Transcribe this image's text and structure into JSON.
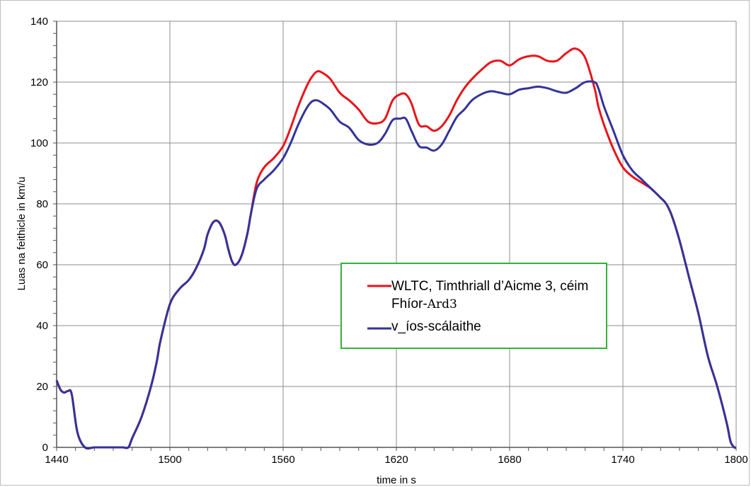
{
  "chart_data": {
    "type": "line",
    "xlabel": "time in s",
    "ylabel": "Luas na feithicle in km/u",
    "xlim": [
      1440,
      1800
    ],
    "ylim": [
      0,
      140
    ],
    "x_ticks": [
      1440,
      1500,
      1560,
      1620,
      1680,
      1740,
      1800
    ],
    "y_ticks": [
      0,
      20,
      40,
      60,
      80,
      100,
      120,
      140
    ],
    "grid": true,
    "legend_position": "center-right",
    "series": [
      {
        "name": "WLTC, Timthriall d’Aicme 3, céim Fhíor-Ard3",
        "legend_line1": "WLTC, Timthriall d’Aicme 3, céim",
        "legend_line2_a": "Fhíor-",
        "legend_line2_b": "Ard3",
        "color": "#e8141b",
        "x": [
          1440,
          1442,
          1444,
          1446,
          1448,
          1451,
          1455,
          1460,
          1465,
          1470,
          1475,
          1478,
          1480,
          1485,
          1490,
          1493,
          1495,
          1500,
          1505,
          1510,
          1514,
          1518,
          1520,
          1523,
          1526,
          1529,
          1531,
          1533,
          1535,
          1538,
          1541,
          1543,
          1546,
          1550,
          1555,
          1560,
          1564,
          1568,
          1572,
          1575,
          1578,
          1581,
          1585,
          1590,
          1595,
          1600,
          1605,
          1610,
          1614,
          1618,
          1622,
          1625,
          1628,
          1632,
          1636,
          1640,
          1644,
          1648,
          1652,
          1656,
          1660,
          1665,
          1670,
          1675,
          1680,
          1685,
          1690,
          1695,
          1700,
          1705,
          1710,
          1715,
          1720,
          1725,
          1727,
          1730,
          1735,
          1740,
          1745,
          1750,
          1755,
          1760,
          1763,
          1766,
          1770,
          1775,
          1780,
          1785,
          1790,
          1795,
          1797,
          1799,
          1800
        ],
        "values": [
          22,
          19,
          18,
          18.5,
          17.5,
          5,
          0,
          0,
          0,
          0,
          0,
          0,
          3,
          10,
          20,
          28,
          35,
          47,
          52,
          55,
          59,
          65,
          70,
          74,
          74,
          70,
          65,
          61,
          60,
          63,
          70,
          77,
          87,
          92,
          95,
          99,
          105,
          112,
          118,
          121.5,
          123.5,
          123,
          121,
          116.5,
          114,
          111,
          107,
          106.5,
          108,
          114,
          116,
          116,
          113,
          106,
          105.5,
          104,
          105.5,
          109,
          114,
          118,
          121,
          124,
          126.5,
          127,
          125.5,
          127.5,
          128.5,
          128.5,
          127,
          127,
          129.5,
          131,
          128,
          118,
          112,
          106,
          98,
          92,
          89,
          87,
          85,
          82,
          80,
          76,
          68,
          56,
          44,
          30,
          20,
          8,
          2,
          0,
          0
        ]
      },
      {
        "name": "v_íos-scálaithe",
        "legend_line1": "v_íos-scálaithe",
        "color": "#33339a",
        "x": [
          1440,
          1442,
          1444,
          1446,
          1448,
          1451,
          1455,
          1460,
          1465,
          1470,
          1475,
          1478,
          1480,
          1485,
          1490,
          1493,
          1495,
          1500,
          1505,
          1510,
          1514,
          1518,
          1520,
          1523,
          1526,
          1529,
          1531,
          1533,
          1535,
          1538,
          1541,
          1543,
          1546,
          1550,
          1555,
          1560,
          1564,
          1568,
          1572,
          1575,
          1578,
          1581,
          1585,
          1590,
          1595,
          1600,
          1605,
          1610,
          1614,
          1618,
          1622,
          1625,
          1628,
          1632,
          1636,
          1640,
          1644,
          1648,
          1652,
          1656,
          1660,
          1665,
          1670,
          1675,
          1680,
          1685,
          1690,
          1695,
          1700,
          1705,
          1710,
          1715,
          1720,
          1725,
          1727,
          1730,
          1735,
          1740,
          1745,
          1750,
          1755,
          1760,
          1763,
          1766,
          1770,
          1775,
          1780,
          1785,
          1790,
          1795,
          1797,
          1799,
          1800
        ],
        "values": [
          22,
          19,
          18,
          18.5,
          17.5,
          5,
          0,
          0,
          0,
          0,
          0,
          0,
          3,
          10,
          20,
          28,
          35,
          47,
          52,
          55,
          59,
          65,
          70,
          74,
          74,
          70,
          65,
          61,
          60,
          63,
          70,
          77,
          85,
          88,
          91,
          95,
          100,
          106,
          111,
          113.5,
          114,
          113,
          111,
          107,
          105,
          101,
          99.5,
          100,
          103,
          107.5,
          108,
          108,
          104,
          99,
          98.5,
          97.5,
          99.5,
          104,
          108.5,
          111,
          114,
          116,
          117,
          116.5,
          116,
          117.5,
          118,
          118.5,
          118,
          117,
          116.5,
          118,
          120,
          120,
          118,
          112,
          104,
          96,
          91,
          88,
          85,
          82,
          80,
          76,
          68,
          56,
          44,
          30,
          20,
          8,
          2,
          0,
          0
        ]
      }
    ]
  }
}
